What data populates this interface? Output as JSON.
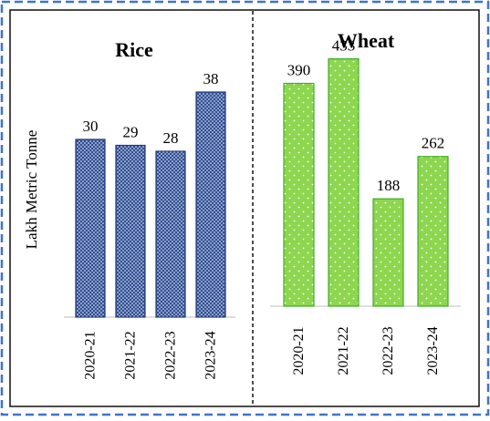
{
  "frame": {
    "outer_border_color": "#3f74c9",
    "inner_border_color": "#111111",
    "divider_color": "#111111"
  },
  "y_axis_label": "Lakh Metric Tonne",
  "chart_data": [
    {
      "type": "bar",
      "title": "Rice",
      "categories": [
        "2020-21",
        "2021-22",
        "2022-23",
        "2023-24"
      ],
      "values": [
        30,
        29,
        28,
        38
      ],
      "data_labels": [
        "30",
        "29",
        "28",
        "38"
      ],
      "ylabel": "Lakh Metric Tonne",
      "ylim": [
        0,
        52
      ],
      "grid": false,
      "legend": "none",
      "bar_color": "#2f4f95",
      "bar_pattern": "white-dots",
      "series": [
        {
          "values": [
            30,
            29,
            28,
            38
          ]
        }
      ]
    },
    {
      "type": "bar",
      "title": "Wheat",
      "categories": [
        "2020-21",
        "2021-22",
        "2022-23",
        "2023-24"
      ],
      "values": [
        390,
        433,
        188,
        262
      ],
      "data_labels": [
        "390",
        "433",
        "188",
        "262"
      ],
      "ylabel": "",
      "ylim": [
        0,
        520
      ],
      "grid": false,
      "legend": "none",
      "bar_color": "#8ed64f",
      "bar_pattern": "white-dots",
      "series": [
        {
          "values": [
            390,
            433,
            188,
            262
          ]
        }
      ]
    }
  ]
}
